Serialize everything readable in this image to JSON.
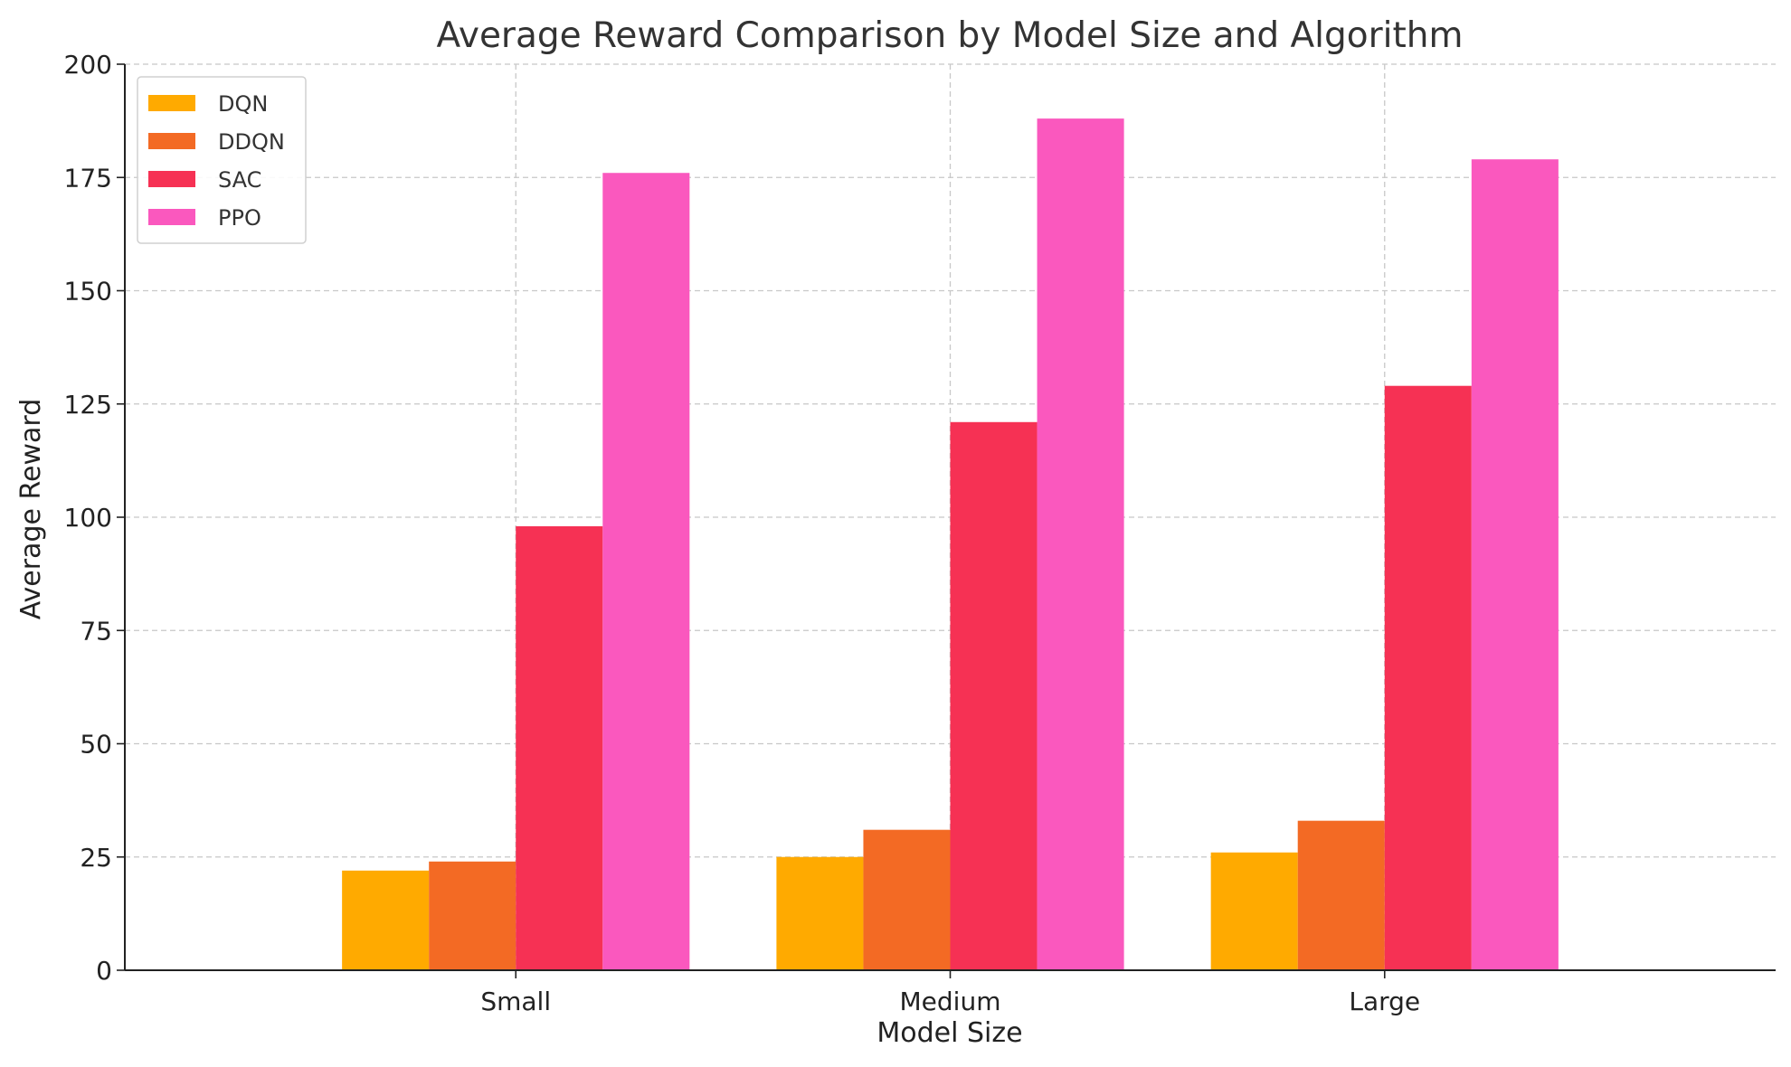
{
  "chart_data": {
    "type": "bar",
    "title": "Average Reward Comparison by Model Size and Algorithm",
    "xlabel": "Model Size",
    "ylabel": "Average Reward",
    "categories": [
      "Small",
      "Medium",
      "Large"
    ],
    "series": [
      {
        "name": "DQN",
        "color": "#FFAA00",
        "values": [
          22,
          25,
          26
        ]
      },
      {
        "name": "DDQN",
        "color": "#F36A24",
        "values": [
          24,
          31,
          33
        ]
      },
      {
        "name": "SAC",
        "color": "#F63154",
        "values": [
          98,
          121,
          129
        ]
      },
      {
        "name": "PPO",
        "color": "#FA58BE",
        "values": [
          176,
          188,
          179
        ]
      }
    ],
    "ylim": [
      0,
      200
    ],
    "yticks": [
      0,
      25,
      50,
      75,
      100,
      125,
      150,
      175,
      200
    ],
    "grid": true,
    "legend_position": "top-left"
  }
}
